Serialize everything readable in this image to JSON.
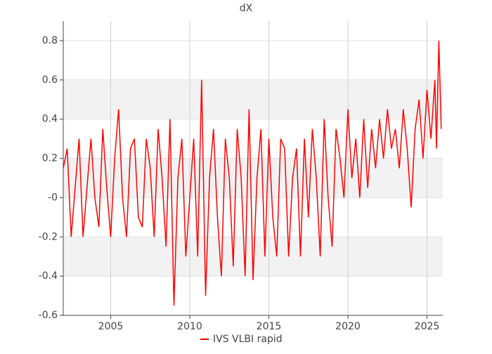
{
  "chart_data": {
    "type": "line",
    "title": "dX",
    "x": [
      2002.0,
      2002.25,
      2002.5,
      2002.75,
      2003.0,
      2003.25,
      2003.5,
      2003.75,
      2004.0,
      2004.25,
      2004.5,
      2004.75,
      2005.0,
      2005.25,
      2005.5,
      2005.75,
      2006.0,
      2006.25,
      2006.5,
      2006.75,
      2007.0,
      2007.25,
      2007.5,
      2007.75,
      2008.0,
      2008.25,
      2008.5,
      2008.75,
      2009.0,
      2009.25,
      2009.5,
      2009.75,
      2010.0,
      2010.25,
      2010.5,
      2010.75,
      2011.0,
      2011.25,
      2011.5,
      2011.75,
      2012.0,
      2012.25,
      2012.5,
      2012.75,
      2013.0,
      2013.25,
      2013.5,
      2013.75,
      2014.0,
      2014.25,
      2014.5,
      2014.75,
      2015.0,
      2015.25,
      2015.5,
      2015.75,
      2016.0,
      2016.25,
      2016.5,
      2016.75,
      2017.0,
      2017.25,
      2017.5,
      2017.75,
      2018.0,
      2018.25,
      2018.5,
      2018.75,
      2019.0,
      2019.25,
      2019.5,
      2019.75,
      2020.0,
      2020.25,
      2020.5,
      2020.75,
      2021.0,
      2021.25,
      2021.5,
      2021.75,
      2022.0,
      2022.25,
      2022.5,
      2022.75,
      2023.0,
      2023.25,
      2023.5,
      2023.75,
      2024.0,
      2024.25,
      2024.5,
      2024.75,
      2025.0,
      2025.25,
      2025.5,
      2025.6,
      2025.75,
      2025.9
    ],
    "series": [
      {
        "name": "IVS VLBI rapid",
        "color": "#ff0000",
        "values": [
          0.15,
          0.25,
          -0.2,
          0.05,
          0.3,
          -0.2,
          0.05,
          0.3,
          0.0,
          -0.15,
          0.35,
          0.05,
          -0.2,
          0.2,
          0.45,
          0.0,
          -0.2,
          0.25,
          0.3,
          -0.1,
          -0.15,
          0.3,
          0.15,
          -0.2,
          0.35,
          0.1,
          -0.25,
          0.4,
          -0.55,
          0.1,
          0.3,
          -0.3,
          0.0,
          0.3,
          -0.3,
          0.6,
          -0.5,
          0.1,
          0.35,
          -0.1,
          -0.4,
          0.3,
          0.1,
          -0.35,
          0.35,
          0.1,
          -0.4,
          0.45,
          -0.42,
          0.1,
          0.35,
          -0.3,
          0.3,
          -0.1,
          -0.3,
          0.3,
          0.25,
          -0.3,
          0.1,
          0.25,
          -0.3,
          0.3,
          -0.1,
          0.35,
          0.1,
          -0.3,
          0.4,
          0.0,
          -0.25,
          0.35,
          0.2,
          0.0,
          0.45,
          0.1,
          0.3,
          0.0,
          0.4,
          0.05,
          0.35,
          0.15,
          0.4,
          0.2,
          0.45,
          0.25,
          0.35,
          0.15,
          0.45,
          0.25,
          -0.05,
          0.35,
          0.5,
          0.2,
          0.55,
          0.3,
          0.6,
          0.25,
          0.8,
          0.35
        ]
      }
    ],
    "xlim": [
      2002,
      2026
    ],
    "xticks": [
      2005,
      2010,
      2015,
      2020,
      2025
    ],
    "ylim": [
      -0.6,
      0.9
    ],
    "yticks": [
      -0.6,
      -0.4,
      -0.2,
      {
        "value": 0,
        "label": "-0"
      },
      0.2,
      0.4,
      0.6,
      0.8
    ],
    "grid": true
  }
}
